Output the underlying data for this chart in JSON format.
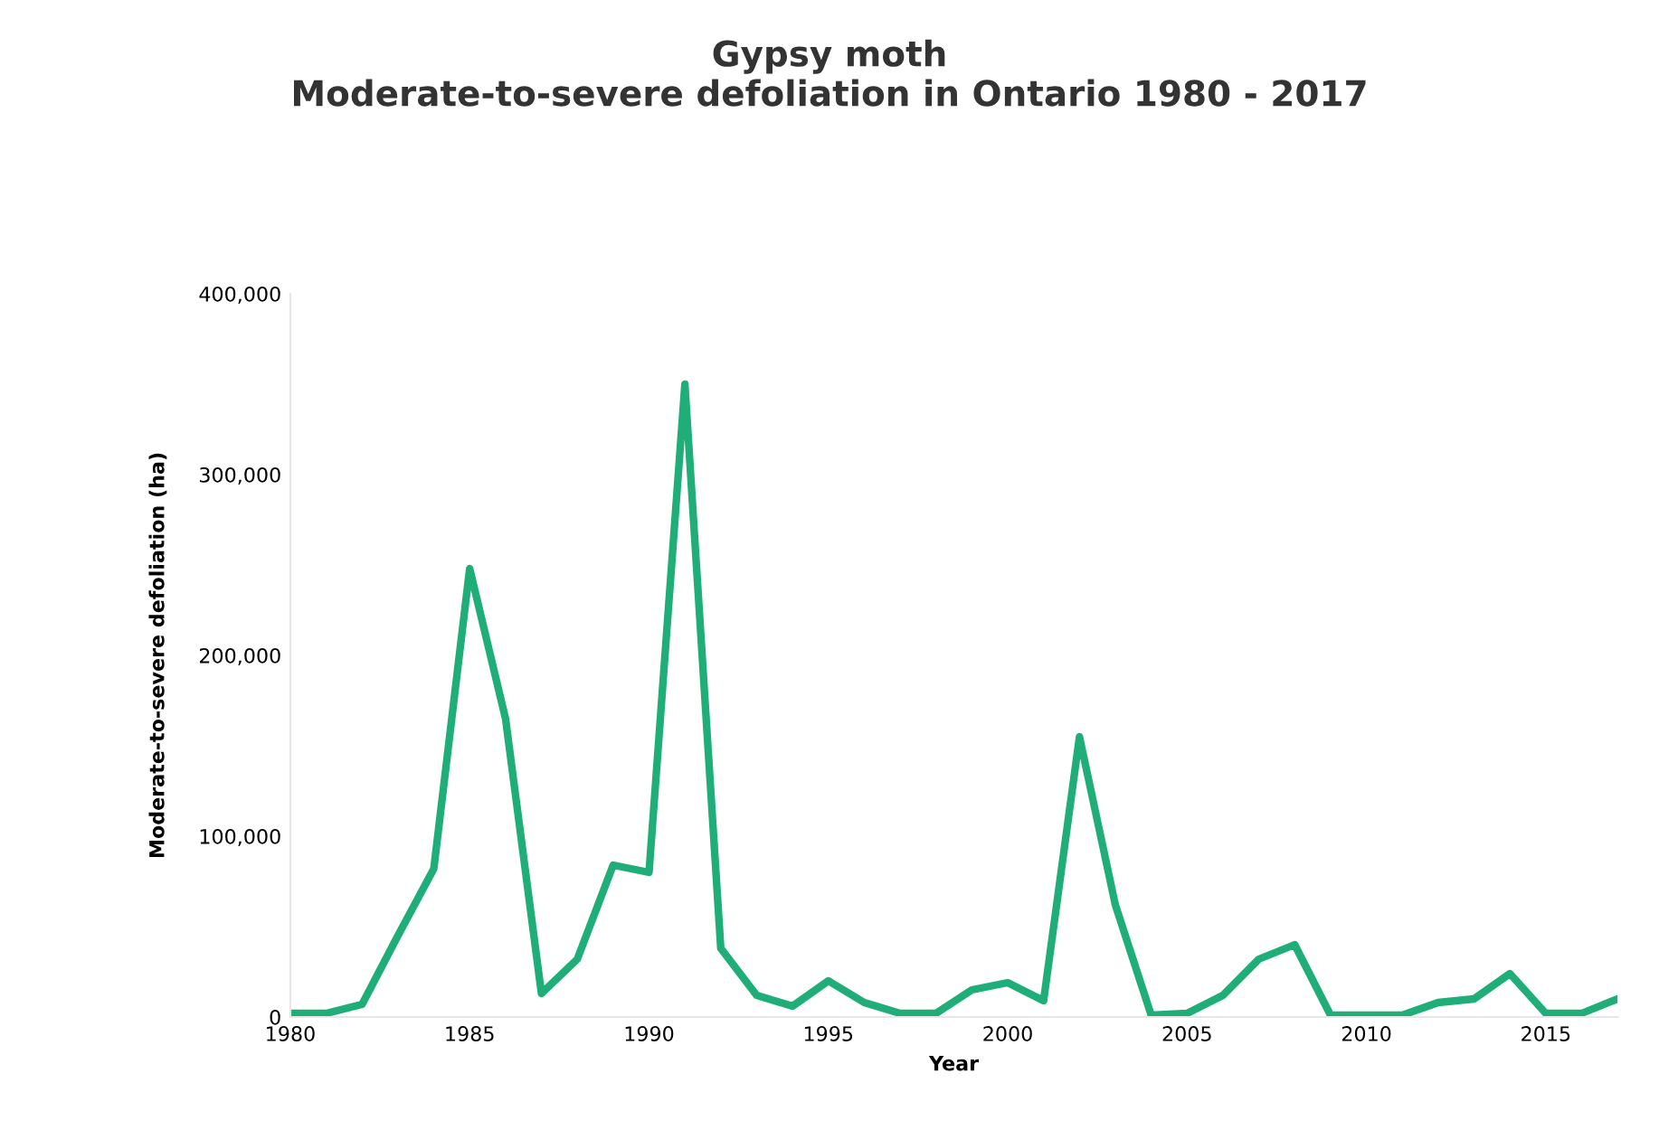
{
  "chart_data": {
    "type": "line",
    "title": "Gypsy moth\nModerate-to-severe defoliation in Ontario 1980 - 2017",
    "xlabel": "Year",
    "ylabel": "Moderate-to-severe defoliation (ha)",
    "x": [
      1980,
      1981,
      1982,
      1983,
      1984,
      1985,
      1986,
      1987,
      1988,
      1989,
      1990,
      1991,
      1992,
      1993,
      1994,
      1995,
      1996,
      1997,
      1998,
      1999,
      2000,
      2001,
      2002,
      2003,
      2004,
      2005,
      2006,
      2007,
      2008,
      2009,
      2010,
      2011,
      2012,
      2013,
      2014,
      2015,
      2016,
      2017
    ],
    "series": [
      {
        "color": "#1fae78",
        "values": [
          2000,
          2000,
          7000,
          45000,
          82000,
          248000,
          165000,
          13000,
          32000,
          84000,
          80000,
          350000,
          38000,
          12000,
          6000,
          20000,
          8000,
          2000,
          2000,
          15000,
          19000,
          9000,
          155000,
          62000,
          1000,
          2000,
          12000,
          32000,
          40000,
          1000,
          1000,
          1000,
          8000,
          10000,
          24000,
          2000,
          2000,
          10000
        ]
      }
    ],
    "xlim": [
      1980,
      2017
    ],
    "xticks": [
      1980,
      1985,
      1990,
      1995,
      2000,
      2005,
      2010,
      2015
    ],
    "ylim": [
      0,
      400000
    ],
    "yticks": [
      {
        "value": 0,
        "label": "0"
      },
      {
        "value": 100000,
        "label": "100,000"
      },
      {
        "value": 200000,
        "label": "200,000"
      },
      {
        "value": 300000,
        "label": "300,000"
      },
      {
        "value": 400000,
        "label": "400,000"
      }
    ],
    "grid": false,
    "legend": false,
    "marker": "none",
    "line_style": "solid"
  }
}
